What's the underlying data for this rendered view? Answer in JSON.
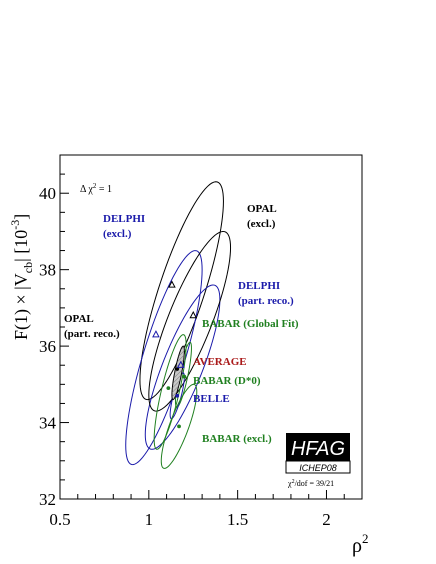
{
  "chart_data": {
    "type": "scatter",
    "title": "",
    "xlabel": "ρ",
    "xlabel_sup": "2",
    "ylabel_parts": {
      "prefix": "F(1) × |V",
      "sub": "cb",
      "suffix": "| [10",
      "sup": "-3",
      "close": "]"
    },
    "xlim": [
      0.5,
      2.2
    ],
    "ylim": [
      32,
      41
    ],
    "x_ticks": [
      0.5,
      1,
      1.5,
      2
    ],
    "x_tick_labels": [
      "0.5",
      "1",
      "1.5",
      "2"
    ],
    "y_ticks": [
      32,
      34,
      36,
      38,
      40
    ],
    "y_tick_labels": [
      "32",
      "34",
      "36",
      "38",
      "40"
    ],
    "delta_chi2_label": {
      "prefix": "Δ χ",
      "sup": "2",
      "suffix": " = 1"
    },
    "chi2_dof_label": {
      "prefix": "χ",
      "sup": "2",
      "suffix": "/dof = 39/21"
    },
    "colors": {
      "black": "#000000",
      "blue": "#1a1aaa",
      "green": "#208020",
      "red": "#aa1a1a",
      "average_fill": "#c8c8c8"
    },
    "measurements": [
      {
        "name": "OPAL (excl.)",
        "label_lines": [
          "OPAL",
          "(excl.)"
        ],
        "color": "black",
        "marker": "triangle",
        "x": 1.13,
        "y": 37.6,
        "ellipse_ranges": {
          "x": [
            0.95,
            1.42
          ],
          "y": [
            34.6,
            40.3
          ]
        }
      },
      {
        "name": "DELPHI (excl.)",
        "label_lines": [
          "DELPHI",
          "(excl.)"
        ],
        "color": "blue",
        "marker": "triangle",
        "x": 1.04,
        "y": 36.3,
        "ellipse_ranges": {
          "x": [
            0.87,
            1.3
          ],
          "y": [
            32.9,
            38.5
          ]
        }
      },
      {
        "name": "DELPHI (part. reco.)",
        "label_lines": [
          "DELPHI",
          "(part. reco.)"
        ],
        "color": "blue",
        "marker": "triangle",
        "x": 1.18,
        "y": 35.5,
        "ellipse_ranges": {
          "x": [
            0.98,
            1.4
          ],
          "y": [
            33.3,
            37.6
          ]
        }
      },
      {
        "name": "OPAL (part. reco.)",
        "label_lines": [
          "OPAL",
          "(part. reco.)"
        ],
        "color": "black",
        "marker": "triangle",
        "x": 1.25,
        "y": 36.8,
        "ellipse_ranges": {
          "x": [
            1.0,
            1.46
          ],
          "y": [
            34.3,
            39.0
          ]
        }
      },
      {
        "name": "BABAR (Global Fit)",
        "label_lines": [
          "BABAR (Global Fit)"
        ],
        "color": "green",
        "marker": "dot",
        "x": 1.2,
        "y": 35.2,
        "ellipse_ranges": {
          "x": [
            1.15,
            1.24
          ],
          "y": [
            34.4,
            36.1
          ]
        }
      },
      {
        "name": "BABAR (D*0)",
        "label_lines": [
          "BABAR (D*0)"
        ],
        "color": "green",
        "marker": "dot",
        "x": 1.11,
        "y": 34.9,
        "ellipse_ranges": {
          "x": [
            1.03,
            1.21
          ],
          "y": [
            33.3,
            36.3
          ]
        }
      },
      {
        "name": "BELLE",
        "label_lines": [
          "BELLE"
        ],
        "color": "blue",
        "marker": "dot",
        "x": 1.16,
        "y": 34.7,
        "ellipse_ranges": {
          "x": [
            1.12,
            1.2
          ],
          "y": [
            34.1,
            35.3
          ]
        }
      },
      {
        "name": "BABAR (excl.)",
        "label_lines": [
          "BABAR (excl.)"
        ],
        "color": "green",
        "marker": "dot",
        "x": 1.17,
        "y": 33.9,
        "ellipse_ranges": {
          "x": [
            1.07,
            1.27
          ],
          "y": [
            32.8,
            35.0
          ]
        }
      }
    ],
    "average": {
      "name": "AVERAGE",
      "color": "red",
      "x": 1.16,
      "y": 35.4,
      "ellipse_ranges": {
        "x": [
          1.13,
          1.2
        ],
        "y": [
          34.6,
          36.0
        ]
      }
    },
    "logo": {
      "title": "HFAG",
      "subtitle": "ICHEP08"
    }
  }
}
